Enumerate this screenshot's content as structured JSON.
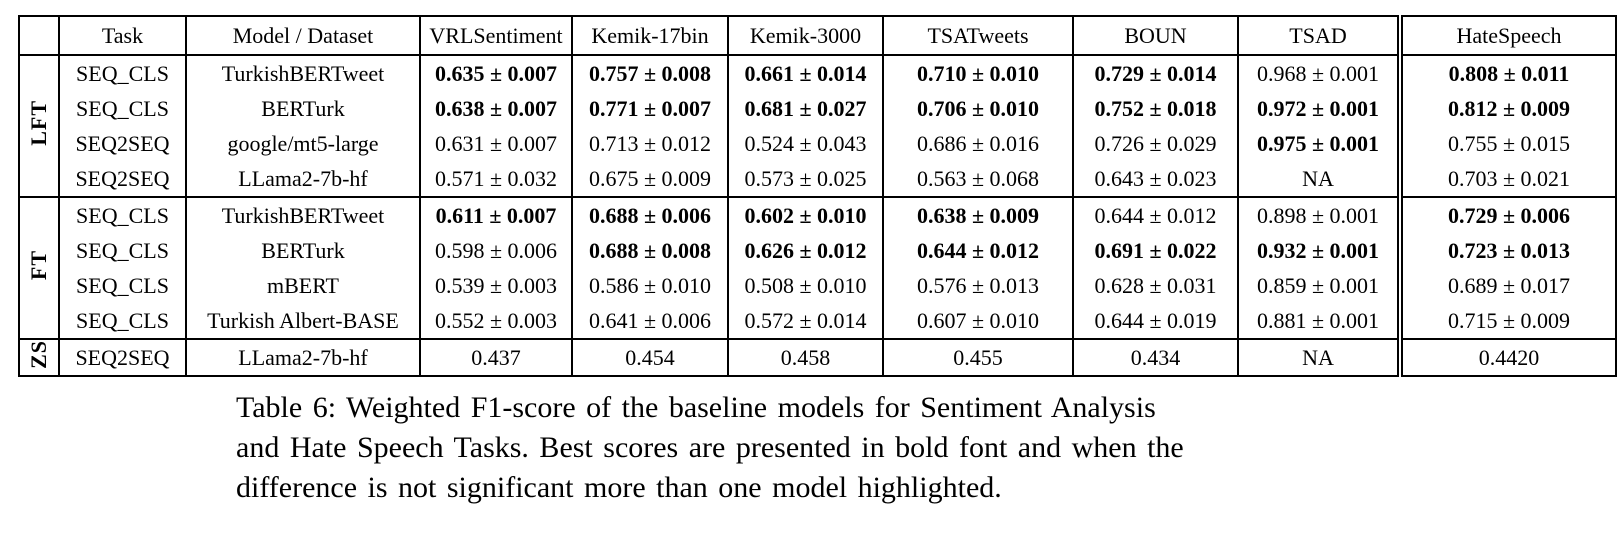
{
  "table": {
    "corner": "",
    "columns": [
      "Task",
      "Model / Dataset",
      "VRLSentiment",
      "Kemik-17bin",
      "Kemik-3000",
      "TSATweets",
      "BOUN",
      "TSAD",
      "HateSpeech"
    ],
    "groups": [
      {
        "label": "LFT",
        "rows": [
          {
            "task": "SEQ_CLS",
            "model": "TurkishBERTweet",
            "scores": [
              {
                "v": "0.635 ± 0.007",
                "bold": true
              },
              {
                "v": "0.757 ± 0.008",
                "bold": true
              },
              {
                "v": "0.661 ± 0.014",
                "bold": true
              },
              {
                "v": "0.710 ± 0.010",
                "bold": true
              },
              {
                "v": "0.729 ± 0.014",
                "bold": true
              },
              {
                "v": "0.968 ± 0.001",
                "bold": false
              },
              {
                "v": "0.808 ± 0.011",
                "bold": true
              }
            ]
          },
          {
            "task": "SEQ_CLS",
            "model": "BERTurk",
            "scores": [
              {
                "v": "0.638 ± 0.007",
                "bold": true
              },
              {
                "v": "0.771 ± 0.007",
                "bold": true
              },
              {
                "v": "0.681 ± 0.027",
                "bold": true
              },
              {
                "v": "0.706 ± 0.010",
                "bold": true
              },
              {
                "v": "0.752 ± 0.018",
                "bold": true
              },
              {
                "v": "0.972 ± 0.001",
                "bold": true
              },
              {
                "v": "0.812 ± 0.009",
                "bold": true
              }
            ]
          },
          {
            "task": "SEQ2SEQ",
            "model": "google/mt5-large",
            "scores": [
              {
                "v": "0.631 ± 0.007",
                "bold": false
              },
              {
                "v": "0.713 ± 0.012",
                "bold": false
              },
              {
                "v": "0.524 ± 0.043",
                "bold": false
              },
              {
                "v": "0.686 ± 0.016",
                "bold": false
              },
              {
                "v": "0.726 ± 0.029",
                "bold": false
              },
              {
                "v": "0.975 ± 0.001",
                "bold": true
              },
              {
                "v": "0.755 ± 0.015",
                "bold": false
              }
            ]
          },
          {
            "task": "SEQ2SEQ",
            "model": "LLama2-7b-hf",
            "scores": [
              {
                "v": "0.571 ± 0.032",
                "bold": false
              },
              {
                "v": "0.675 ± 0.009",
                "bold": false
              },
              {
                "v": "0.573 ± 0.025",
                "bold": false
              },
              {
                "v": "0.563 ± 0.068",
                "bold": false
              },
              {
                "v": "0.643 ± 0.023",
                "bold": false
              },
              {
                "v": "NA",
                "bold": false
              },
              {
                "v": "0.703 ± 0.021",
                "bold": false
              }
            ]
          }
        ]
      },
      {
        "label": "FT",
        "rows": [
          {
            "task": "SEQ_CLS",
            "model": "TurkishBERTweet",
            "scores": [
              {
                "v": "0.611 ± 0.007",
                "bold": true
              },
              {
                "v": "0.688 ± 0.006",
                "bold": true
              },
              {
                "v": "0.602 ± 0.010",
                "bold": true
              },
              {
                "v": "0.638 ± 0.009",
                "bold": true
              },
              {
                "v": "0.644 ± 0.012",
                "bold": false
              },
              {
                "v": "0.898 ± 0.001",
                "bold": false
              },
              {
                "v": "0.729 ± 0.006",
                "bold": true
              }
            ]
          },
          {
            "task": "SEQ_CLS",
            "model": "BERTurk",
            "scores": [
              {
                "v": "0.598 ± 0.006",
                "bold": false
              },
              {
                "v": "0.688 ± 0.008",
                "bold": true
              },
              {
                "v": "0.626 ± 0.012",
                "bold": true
              },
              {
                "v": "0.644 ± 0.012",
                "bold": true
              },
              {
                "v": "0.691 ± 0.022",
                "bold": true
              },
              {
                "v": "0.932 ± 0.001",
                "bold": true
              },
              {
                "v": "0.723 ± 0.013",
                "bold": true
              }
            ]
          },
          {
            "task": "SEQ_CLS",
            "model": "mBERT",
            "scores": [
              {
                "v": "0.539 ± 0.003",
                "bold": false
              },
              {
                "v": "0.586 ± 0.010",
                "bold": false
              },
              {
                "v": "0.508 ± 0.010",
                "bold": false
              },
              {
                "v": "0.576 ± 0.013",
                "bold": false
              },
              {
                "v": "0.628 ± 0.031",
                "bold": false
              },
              {
                "v": "0.859 ± 0.001",
                "bold": false
              },
              {
                "v": "0.689 ± 0.017",
                "bold": false
              }
            ]
          },
          {
            "task": "SEQ_CLS",
            "model": "Turkish Albert-BASE",
            "scores": [
              {
                "v": "0.552 ± 0.003",
                "bold": false
              },
              {
                "v": "0.641 ± 0.006",
                "bold": false
              },
              {
                "v": "0.572 ± 0.014",
                "bold": false
              },
              {
                "v": "0.607 ± 0.010",
                "bold": false
              },
              {
                "v": "0.644 ± 0.019",
                "bold": false
              },
              {
                "v": "0.881 ± 0.001",
                "bold": false
              },
              {
                "v": "0.715 ± 0.009",
                "bold": false
              }
            ]
          }
        ]
      },
      {
        "label": "ZS",
        "rows": [
          {
            "task": "SEQ2SEQ",
            "model": "LLama2-7b-hf",
            "scores": [
              {
                "v": "0.437",
                "bold": false
              },
              {
                "v": "0.454",
                "bold": false
              },
              {
                "v": "0.458",
                "bold": false
              },
              {
                "v": "0.455",
                "bold": false
              },
              {
                "v": "0.434",
                "bold": false
              },
              {
                "v": "NA",
                "bold": false
              },
              {
                "v": "0.4420",
                "bold": false
              }
            ]
          }
        ]
      }
    ]
  },
  "caption": {
    "lines": [
      "Table 6: Weighted F1-score of the baseline models for Sentiment Analysis",
      "and Hate Speech Tasks. Best scores are presented in bold font and when the",
      "difference is not significant more than one model highlighted."
    ]
  }
}
